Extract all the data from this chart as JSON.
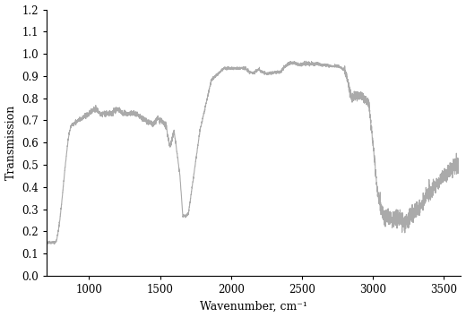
{
  "xlabel": "Wavenumber, cm⁻¹",
  "ylabel": "Transmission",
  "xlim": [
    700,
    3620
  ],
  "ylim": [
    0.0,
    1.2
  ],
  "xticks": [
    1000,
    1500,
    2000,
    2500,
    3000,
    3500
  ],
  "yticks": [
    0.0,
    0.1,
    0.2,
    0.3,
    0.4,
    0.5,
    0.6,
    0.7,
    0.8,
    0.9,
    1.0,
    1.1,
    1.2
  ],
  "line_color": "#aaaaaa",
  "line_width": 0.8,
  "background_color": "#ffffff"
}
